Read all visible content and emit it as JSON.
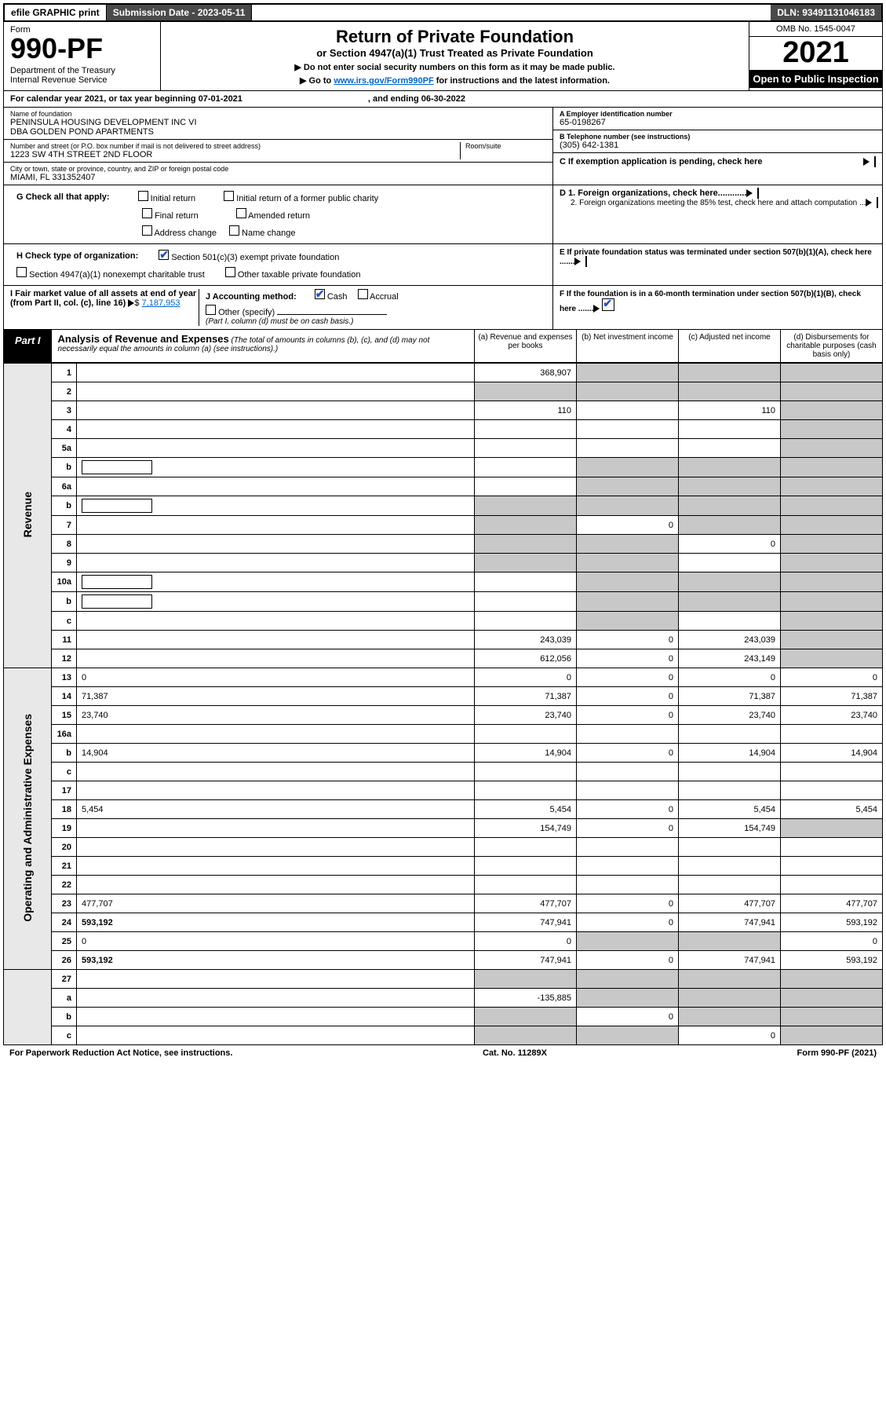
{
  "topbar": {
    "efile": "efile GRAPHIC print",
    "submission": "Submission Date - 2023-05-11",
    "dln": "DLN: 93491131046183"
  },
  "header": {
    "form_label": "Form",
    "form_num": "990-PF",
    "dept": "Department of the Treasury\nInternal Revenue Service",
    "title": "Return of Private Foundation",
    "subtitle": "or Section 4947(a)(1) Trust Treated as Private Foundation",
    "note1": "▶ Do not enter social security numbers on this form as it may be made public.",
    "note2_pre": "▶ Go to ",
    "note2_link": "www.irs.gov/Form990PF",
    "note2_post": " for instructions and the latest information.",
    "omb": "OMB No. 1545-0047",
    "year": "2021",
    "open": "Open to Public Inspection"
  },
  "calyear": {
    "pre": "For calendar year 2021, or tax year beginning 07-01-2021",
    "mid": ", and ending 06-30-2022"
  },
  "info": {
    "name_label": "Name of foundation",
    "name": "PENINSULA HOUSING DEVELOPMENT INC VI\nDBA GOLDEN POND APARTMENTS",
    "addr_label": "Number and street (or P.O. box number if mail is not delivered to street address)",
    "addr": "1223 SW 4TH STREET 2ND FLOOR",
    "room_label": "Room/suite",
    "city_label": "City or town, state or province, country, and ZIP or foreign postal code",
    "city": "MIAMI, FL  331352407",
    "ein_label": "A Employer identification number",
    "ein": "65-0198267",
    "tel_label": "B Telephone number (see instructions)",
    "tel": "(305) 642-1381",
    "c_label": "C If exemption application is pending, check here",
    "d1": "D 1. Foreign organizations, check here............",
    "d2": "2. Foreign organizations meeting the 85% test, check here and attach computation ...",
    "e_label": "E  If private foundation status was terminated under section 507(b)(1)(A), check here .......",
    "f_label": "F  If the foundation is in a 60-month termination under section 507(b)(1)(B), check here .......",
    "g_label": "G Check all that apply:",
    "g_opts": [
      "Initial return",
      "Final return",
      "Address change",
      "Initial return of a former public charity",
      "Amended return",
      "Name change"
    ],
    "h_label": "H Check type of organization:",
    "h1": "Section 501(c)(3) exempt private foundation",
    "h2": "Section 4947(a)(1) nonexempt charitable trust",
    "h3": "Other taxable private foundation",
    "i_label": "I Fair market value of all assets at end of year (from Part II, col. (c), line 16)",
    "i_val": "7,187,953",
    "j_label": "J Accounting method:",
    "j_cash": "Cash",
    "j_accrual": "Accrual",
    "j_other": "Other (specify)",
    "j_note": "(Part I, column (d) must be on cash basis.)"
  },
  "part1": {
    "label": "Part I",
    "title": "Analysis of Revenue and Expenses",
    "desc": "(The total of amounts in columns (b), (c), and (d) may not necessarily equal the amounts in column (a) (see instructions).)",
    "cols": {
      "a": "(a)   Revenue and expenses per books",
      "b": "(b)   Net investment income",
      "c": "(c)   Adjusted net income",
      "d": "(d)   Disbursements for charitable purposes (cash basis only)"
    }
  },
  "side": {
    "revenue": "Revenue",
    "expenses": "Operating and Administrative Expenses"
  },
  "rows": [
    {
      "n": "1",
      "d": "",
      "a": "368,907",
      "b": "",
      "c": "",
      "sb": true,
      "sc": true,
      "sd": true
    },
    {
      "n": "2",
      "d": "",
      "a": "",
      "b": "",
      "c": "",
      "sa": true,
      "sb": true,
      "sc": true,
      "sd": true
    },
    {
      "n": "3",
      "d": "",
      "a": "110",
      "b": "",
      "c": "110",
      "sd": true
    },
    {
      "n": "4",
      "d": "",
      "a": "",
      "b": "",
      "c": "",
      "sd": true
    },
    {
      "n": "5a",
      "d": "",
      "a": "",
      "b": "",
      "c": "",
      "sd": true
    },
    {
      "n": "b",
      "d": "",
      "a": "",
      "b": "",
      "c": "",
      "sa": false,
      "sb": true,
      "sc": true,
      "sd": true,
      "input": true
    },
    {
      "n": "6a",
      "d": "",
      "a": "",
      "b": "",
      "c": "",
      "sb": true,
      "sc": true,
      "sd": true
    },
    {
      "n": "b",
      "d": "",
      "a": "",
      "b": "",
      "c": "",
      "sa": true,
      "sb": true,
      "sc": true,
      "sd": true,
      "input": true
    },
    {
      "n": "7",
      "d": "",
      "a": "",
      "b": "0",
      "c": "",
      "sa": true,
      "sc": true,
      "sd": true
    },
    {
      "n": "8",
      "d": "",
      "a": "",
      "b": "",
      "c": "0",
      "sa": true,
      "sb": true,
      "sd": true
    },
    {
      "n": "9",
      "d": "",
      "a": "",
      "b": "",
      "c": "",
      "sa": true,
      "sb": true,
      "sd": true
    },
    {
      "n": "10a",
      "d": "",
      "a": "",
      "b": "",
      "c": "",
      "sb": true,
      "sc": true,
      "sd": true,
      "input": true
    },
    {
      "n": "b",
      "d": "",
      "a": "",
      "b": "",
      "c": "",
      "sb": true,
      "sc": true,
      "sd": true,
      "input": true
    },
    {
      "n": "c",
      "d": "",
      "a": "",
      "b": "",
      "c": "",
      "sb": true,
      "sd": true
    },
    {
      "n": "11",
      "d": "",
      "a": "243,039",
      "b": "0",
      "c": "243,039",
      "sd": true
    },
    {
      "n": "12",
      "d": "",
      "a": "612,056",
      "b": "0",
      "c": "243,149",
      "bold": true,
      "sd": true
    }
  ],
  "exp_rows": [
    {
      "n": "13",
      "d": "0",
      "a": "0",
      "b": "0",
      "c": "0"
    },
    {
      "n": "14",
      "d": "71,387",
      "a": "71,387",
      "b": "0",
      "c": "71,387"
    },
    {
      "n": "15",
      "d": "23,740",
      "a": "23,740",
      "b": "0",
      "c": "23,740"
    },
    {
      "n": "16a",
      "d": "",
      "a": "",
      "b": "",
      "c": ""
    },
    {
      "n": "b",
      "d": "14,904",
      "a": "14,904",
      "b": "0",
      "c": "14,904"
    },
    {
      "n": "c",
      "d": "",
      "a": "",
      "b": "",
      "c": ""
    },
    {
      "n": "17",
      "d": "",
      "a": "",
      "b": "",
      "c": ""
    },
    {
      "n": "18",
      "d": "5,454",
      "a": "5,454",
      "b": "0",
      "c": "5,454"
    },
    {
      "n": "19",
      "d": "",
      "a": "154,749",
      "b": "0",
      "c": "154,749",
      "sd": true
    },
    {
      "n": "20",
      "d": "",
      "a": "",
      "b": "",
      "c": ""
    },
    {
      "n": "21",
      "d": "",
      "a": "",
      "b": "",
      "c": ""
    },
    {
      "n": "22",
      "d": "",
      "a": "",
      "b": "",
      "c": ""
    },
    {
      "n": "23",
      "d": "477,707",
      "a": "477,707",
      "b": "0",
      "c": "477,707"
    },
    {
      "n": "24",
      "d": "593,192",
      "a": "747,941",
      "b": "0",
      "c": "747,941",
      "bold": true
    },
    {
      "n": "25",
      "d": "0",
      "a": "0",
      "b": "",
      "c": "",
      "sb": true,
      "sc": true
    },
    {
      "n": "26",
      "d": "593,192",
      "a": "747,941",
      "b": "0",
      "c": "747,941",
      "bold": true
    }
  ],
  "bottom_rows": [
    {
      "n": "27",
      "d": "",
      "a": "",
      "b": "",
      "c": "",
      "sa": true,
      "sb": true,
      "sc": true,
      "sd": true
    },
    {
      "n": "a",
      "d": "",
      "a": "-135,885",
      "b": "",
      "c": "",
      "bold": true,
      "sb": true,
      "sc": true,
      "sd": true
    },
    {
      "n": "b",
      "d": "",
      "a": "",
      "b": "0",
      "c": "",
      "bold": true,
      "sa": true,
      "sc": true,
      "sd": true
    },
    {
      "n": "c",
      "d": "",
      "a": "",
      "b": "",
      "c": "0",
      "bold": true,
      "sa": true,
      "sb": true,
      "sd": true
    }
  ],
  "footer": {
    "left": "For Paperwork Reduction Act Notice, see instructions.",
    "mid": "Cat. No. 11289X",
    "right": "Form 990-PF (2021)"
  }
}
